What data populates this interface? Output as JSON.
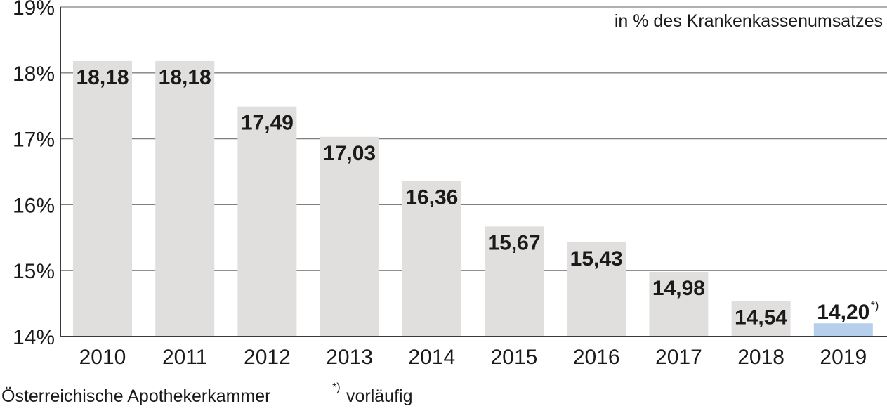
{
  "chart_data": {
    "type": "bar",
    "categories": [
      "2010",
      "2011",
      "2012",
      "2013",
      "2014",
      "2015",
      "2016",
      "2017",
      "2018",
      "2019"
    ],
    "values": [
      18.18,
      18.18,
      17.49,
      17.03,
      16.36,
      15.67,
      15.43,
      14.98,
      14.54,
      14.2
    ],
    "value_labels": [
      "18,18",
      "18,18",
      "17,49",
      "17,03",
      "16,36",
      "15,67",
      "15,43",
      "14,98",
      "14,54",
      "14,20"
    ],
    "ylim": [
      14,
      19
    ],
    "yticks": [
      14,
      15,
      16,
      17,
      18,
      19
    ],
    "ytick_labels": [
      "14%",
      "15%",
      "16%",
      "17%",
      "18%",
      "19%"
    ],
    "unit_note": "in % des Krankenkassenumsatzes",
    "grid": true,
    "colors": {
      "bar": "#e1dfdd",
      "highlight_bar": "#b6cfec",
      "grid": "#808080",
      "axis": "#3a3a3a"
    },
    "highlight_index": 9,
    "footnote_marker": "*)",
    "footnote_on_index": 9
  },
  "footer": {
    "source": "Österreichische Apothekerkammer",
    "footnote_marker": "*)",
    "footnote_text": "vorläufig"
  }
}
